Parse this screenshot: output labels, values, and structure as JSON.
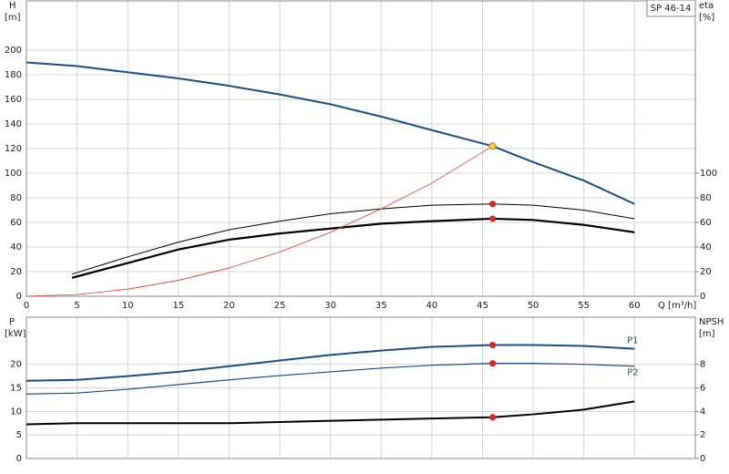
{
  "chart_data": [
    {
      "type": "line",
      "title": "SP 46-14",
      "ylabel": "H",
      "yunit": "[m]",
      "y2label": "eta",
      "y2unit": "[%]",
      "xlabel": "Q [m³/h]",
      "xlim": [
        0,
        66
      ],
      "xticks": [
        0,
        5,
        10,
        15,
        20,
        25,
        30,
        35,
        40,
        45,
        50,
        55,
        60
      ],
      "ylim": [
        0,
        240
      ],
      "yticks": [
        0,
        20,
        40,
        60,
        80,
        100,
        120,
        140,
        160,
        180,
        200
      ],
      "y2lim": [
        0,
        240
      ],
      "y2ticks": [
        0,
        20,
        40,
        60,
        80,
        100
      ],
      "grid": true,
      "series": [
        {
          "color": "#1a4f8b",
          "width": 2,
          "x": [
            0,
            5,
            10,
            15,
            20,
            25,
            30,
            35,
            40,
            46,
            50,
            55,
            60
          ],
          "values": [
            190,
            187,
            182,
            177,
            171,
            164,
            156,
            146,
            135,
            122,
            109,
            94,
            75
          ]
        },
        {
          "color": "#000000",
          "width": 1,
          "axis": "y2",
          "x": [
            4.5,
            10,
            15,
            20,
            25,
            30,
            35,
            40,
            46,
            50,
            55,
            60
          ],
          "values": [
            18,
            32,
            44,
            54,
            61,
            67,
            71,
            74,
            75,
            74,
            70,
            63
          ]
        },
        {
          "color": "#000000",
          "width": 2.2,
          "axis": "y2",
          "x": [
            4.5,
            10,
            15,
            20,
            25,
            30,
            35,
            40,
            46,
            50,
            55,
            60
          ],
          "values": [
            15,
            27,
            38,
            46,
            51,
            55,
            59,
            61,
            63,
            62,
            58,
            52
          ]
        },
        {
          "color": "#ff3030",
          "width": 0.8,
          "x": [
            0,
            5,
            10,
            15,
            20,
            25,
            30,
            35,
            40,
            46
          ],
          "values": [
            0,
            1.4,
            5.8,
            13,
            23,
            36,
            52,
            71,
            92,
            122
          ]
        },
        {
          "color": "#ffd21f",
          "marker": true,
          "x": [
            46
          ],
          "values": [
            122
          ]
        },
        {
          "color": "#ee1c1c",
          "marker": true,
          "axis": "y2",
          "x": [
            46
          ],
          "values": [
            75
          ]
        },
        {
          "color": "#ee1c1c",
          "marker": true,
          "axis": "y2",
          "x": [
            46
          ],
          "values": [
            63
          ]
        }
      ]
    },
    {
      "type": "line",
      "ylabel": "P",
      "yunit": "[kW]",
      "y2label": "NPSH",
      "y2unit": "[m]",
      "xlim": [
        0,
        66
      ],
      "xticks": [
        0,
        5,
        10,
        15,
        20,
        25,
        30,
        35,
        40,
        45,
        50,
        55,
        60
      ],
      "ylim": [
        0,
        30
      ],
      "yticks": [
        0,
        5,
        10,
        15,
        20
      ],
      "y2lim": [
        0,
        12
      ],
      "y2ticks": [
        0,
        2,
        4,
        6,
        8
      ],
      "grid": true,
      "series": [
        {
          "name": "P1",
          "color": "#1a4f8b",
          "width": 2,
          "x": [
            0,
            5,
            10,
            15,
            20,
            25,
            30,
            35,
            40,
            46,
            50,
            55,
            60
          ],
          "values": [
            16.5,
            16.7,
            17.5,
            18.4,
            19.6,
            20.8,
            22,
            22.9,
            23.7,
            24.1,
            24.1,
            23.9,
            23.3
          ]
        },
        {
          "name": "P2",
          "color": "#1a4f8b",
          "width": 1.2,
          "x": [
            0,
            5,
            10,
            15,
            20,
            25,
            30,
            35,
            40,
            46,
            50,
            55,
            60
          ],
          "values": [
            13.7,
            13.9,
            14.7,
            15.7,
            16.7,
            17.6,
            18.4,
            19.2,
            19.8,
            20.2,
            20.2,
            20,
            19.6
          ]
        },
        {
          "color": "#000000",
          "width": 2,
          "axis": "y2",
          "x": [
            0,
            5,
            10,
            15,
            20,
            25,
            30,
            35,
            40,
            46,
            50,
            55,
            60
          ],
          "values": [
            2.9,
            3,
            3,
            3,
            3,
            3.1,
            3.2,
            3.3,
            3.4,
            3.5,
            3.75,
            4.15,
            4.85
          ]
        },
        {
          "color": "#ee1c1c",
          "marker": true,
          "x": [
            46
          ],
          "values": [
            24.1
          ]
        },
        {
          "color": "#ee1c1c",
          "marker": true,
          "x": [
            46
          ],
          "values": [
            20.2
          ]
        },
        {
          "color": "#ee1c1c",
          "marker": true,
          "axis": "y2",
          "x": [
            46
          ],
          "values": [
            3.5
          ]
        }
      ]
    }
  ]
}
